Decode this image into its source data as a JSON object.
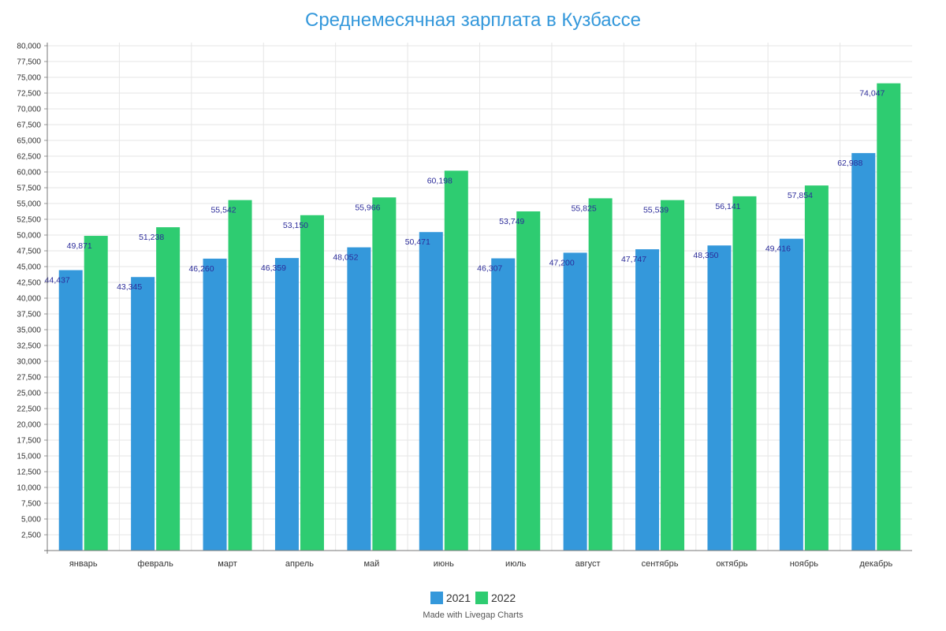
{
  "chart_data": {
    "type": "bar",
    "title": "Среднемесячная зарплата в Кузбассе",
    "xlabel": "",
    "ylabel": "",
    "ylim": [
      0,
      80000
    ],
    "ytick_step": 2500,
    "grid": true,
    "legend_position": "bottom",
    "categories": [
      "январь",
      "февраль",
      "март",
      "апрель",
      "май",
      "июнь",
      "июль",
      "август",
      "сентябрь",
      "октябрь",
      "ноябрь",
      "декабрь"
    ],
    "series": [
      {
        "name": "2021",
        "color": "#3498db",
        "values": [
          44437,
          43345,
          46260,
          46359,
          48052,
          50471,
          46307,
          47200,
          47747,
          48350,
          49416,
          62988
        ],
        "labels": [
          "44,437",
          "43,345",
          "46,260",
          "46,359",
          "48,052",
          "50,471",
          "46,307",
          "47,200",
          "47,747",
          "48,350",
          "49,416",
          "62,988"
        ]
      },
      {
        "name": "2022",
        "color": "#2ecc71",
        "values": [
          49871,
          51238,
          55542,
          53150,
          55966,
          60198,
          53749,
          55825,
          55539,
          56141,
          57854,
          74047
        ],
        "labels": [
          "49,871",
          "51,238",
          "55,542",
          "53,150",
          "55,966",
          "60,198",
          "53,749",
          "55,825",
          "55,539",
          "56,141",
          "57,854",
          "74,047"
        ]
      }
    ],
    "ytick_labels": [
      "2,500",
      "5,000",
      "7,500",
      "10,000",
      "12,500",
      "15,000",
      "17,500",
      "20,000",
      "22,500",
      "25,000",
      "27,500",
      "30,000",
      "32,500",
      "35,000",
      "37,500",
      "40,000",
      "42,500",
      "45,000",
      "47,500",
      "50,000",
      "52,500",
      "55,000",
      "57,500",
      "60,000",
      "62,500",
      "65,000",
      "67,500",
      "70,000",
      "72,500",
      "75,000",
      "77,500",
      "80,000"
    ]
  },
  "legend": {
    "items": [
      {
        "label": "2021",
        "color": "#3498db"
      },
      {
        "label": "2022",
        "color": "#2ecc71"
      }
    ]
  },
  "footer": {
    "credit": "Made with Livegap Charts"
  }
}
